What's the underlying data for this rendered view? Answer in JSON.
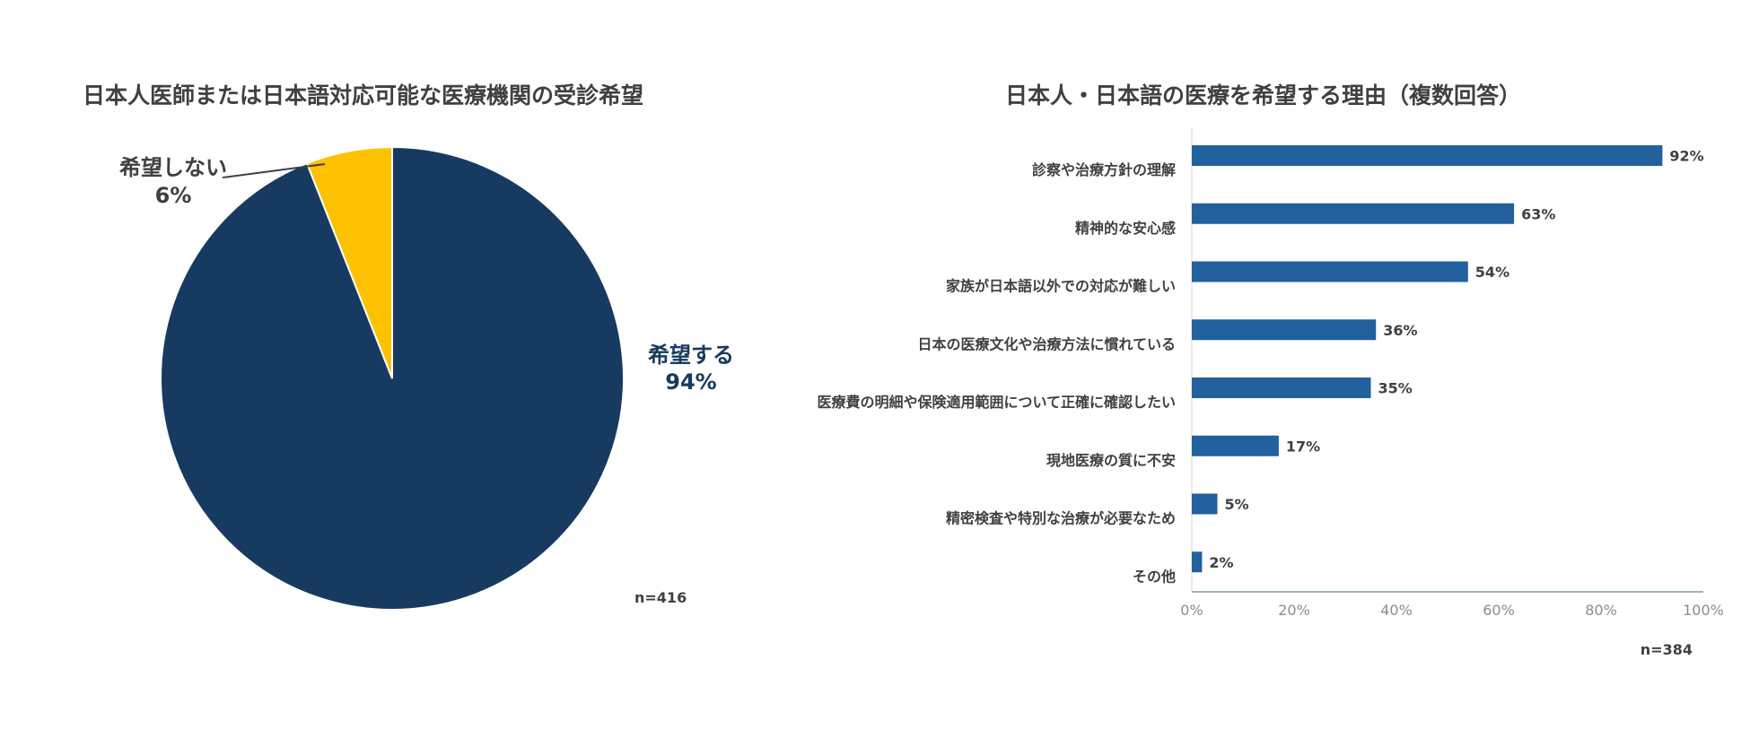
{
  "chart_data": [
    {
      "type": "pie",
      "title": "日本人医師または日本語対応可能な医療機関の受診希望",
      "slices": [
        {
          "label": "希望する",
          "value": 94,
          "value_label": "94%",
          "color": "#173a61"
        },
        {
          "label": "希望しない",
          "value": 6,
          "value_label": "6%",
          "color": "#fcc200"
        }
      ],
      "note": "n=416"
    },
    {
      "type": "bar",
      "orientation": "horizontal",
      "title": "日本人・日本語の医療を希望する理由（複数回答）",
      "categories": [
        "診察や治療方針の理解",
        "精神的な安心感",
        "家族が日本語以外での対応が難しい",
        "日本の医療文化や治療方法に慣れている",
        "医療費の明細や保険適用範囲について正確に確認したい",
        "現地医療の質に不安",
        "精密検査や特別な治療が必要なため",
        "その他"
      ],
      "values": [
        92,
        63,
        54,
        36,
        35,
        17,
        5,
        2
      ],
      "value_labels": [
        "92%",
        "63%",
        "54%",
        "36%",
        "35%",
        "17%",
        "5%",
        "2%"
      ],
      "xlim": [
        0,
        100
      ],
      "xticks": [
        "0%",
        "20%",
        "40%",
        "60%",
        "80%",
        "100%"
      ],
      "color": "#22609e",
      "note": "n=384"
    }
  ]
}
